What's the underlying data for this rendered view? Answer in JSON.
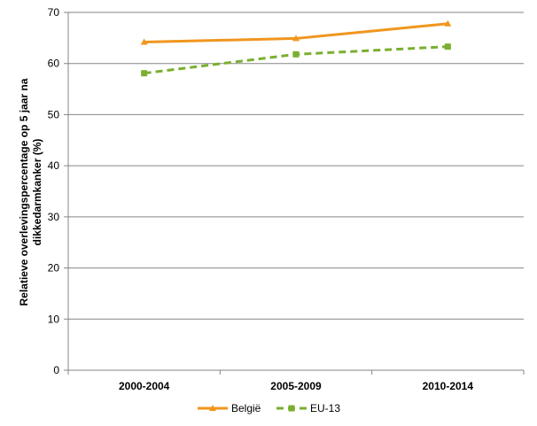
{
  "chart_data": {
    "type": "line",
    "title": "",
    "xlabel": "",
    "ylabel": [
      "Relatieve overlevingspercentage op 5 jaar na",
      "dikkedarmkanker (%)"
    ],
    "categories": [
      "2000-2004",
      "2005-2009",
      "2010-2014"
    ],
    "ylim": [
      0,
      70
    ],
    "yticks": [
      0,
      10,
      20,
      30,
      40,
      50,
      60,
      70
    ],
    "grid": true,
    "legend": "bottom",
    "series": [
      {
        "name": "België",
        "values": [
          64.2,
          64.9,
          67.8
        ],
        "color": "#F0961E",
        "marker": "triangle",
        "dash": "solid"
      },
      {
        "name": "EU-13",
        "values": [
          58.1,
          61.8,
          63.3
        ],
        "color": "#7AAF2F",
        "marker": "square",
        "dash": "dashed"
      }
    ]
  }
}
